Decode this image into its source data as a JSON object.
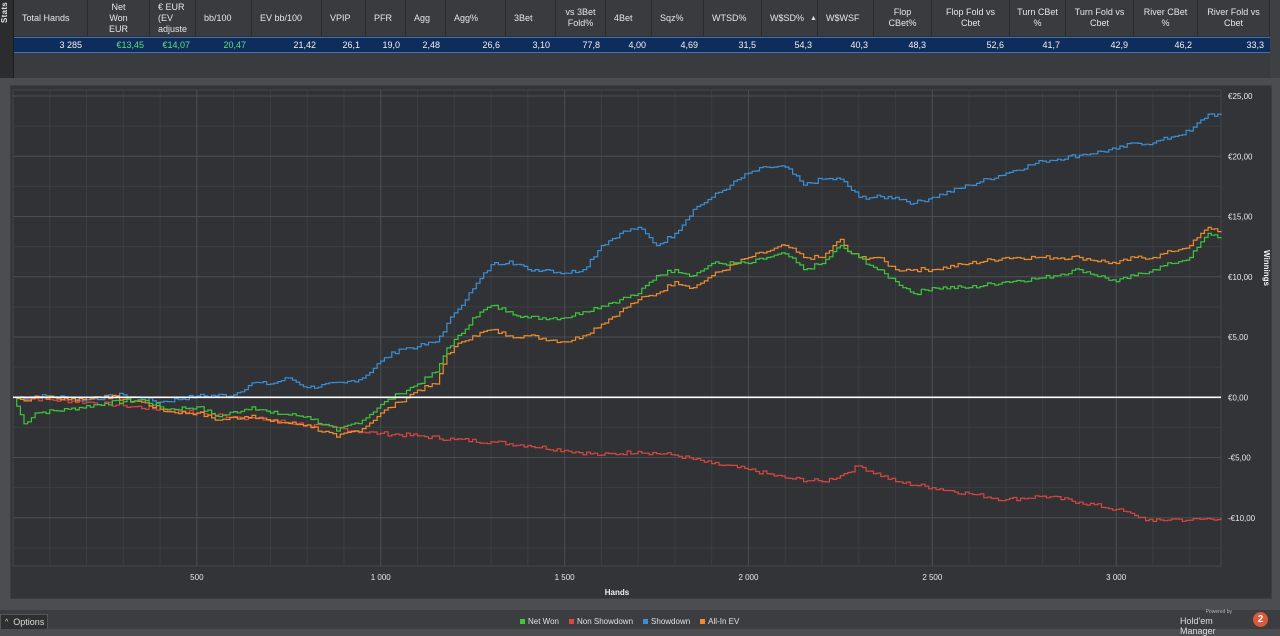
{
  "side_tab": {
    "label": "Stats"
  },
  "stats_table": {
    "columns": [
      {
        "label": "Total Hands",
        "align": "left"
      },
      {
        "label": "Net\nWon\nEUR",
        "align": "center"
      },
      {
        "label": "€ EUR\n(EV\nadjuste",
        "align": "left"
      },
      {
        "label": "bb/100",
        "align": "left"
      },
      {
        "label": "EV bb/100",
        "align": "left"
      },
      {
        "label": "VPIP",
        "align": "left"
      },
      {
        "label": "PFR",
        "align": "left"
      },
      {
        "label": "Agg",
        "align": "left"
      },
      {
        "label": "Agg%",
        "align": "left"
      },
      {
        "label": "3Bet",
        "align": "left"
      },
      {
        "label": "vs 3Bet\nFold%",
        "align": "center"
      },
      {
        "label": "4Bet",
        "align": "left"
      },
      {
        "label": "Sqz%",
        "align": "left"
      },
      {
        "label": "WTSD%",
        "align": "left"
      },
      {
        "label": "W$SD%",
        "align": "left",
        "sorted": true
      },
      {
        "label": "W$WSF",
        "align": "left"
      },
      {
        "label": "Flop\nCBet%",
        "align": "center"
      },
      {
        "label": "Flop Fold vs\nCbet",
        "align": "center"
      },
      {
        "label": "Turn CBet\n%",
        "align": "center"
      },
      {
        "label": "Turn Fold vs\nCbet",
        "align": "center"
      },
      {
        "label": "River CBet\n%",
        "align": "center"
      },
      {
        "label": "River Fold vs\nCbet",
        "align": "center"
      }
    ],
    "row": [
      "3 285",
      "€13,45",
      "€14,07",
      "20,47",
      "21,42",
      "26,1",
      "19,0",
      "2,48",
      "26,6",
      "3,10",
      "77,8",
      "4,00",
      "4,69",
      "31,5",
      "54,3",
      "40,3",
      "48,3",
      "52,6",
      "41,7",
      "42,9",
      "46,2",
      "33,3"
    ],
    "green_values": [
      1,
      2,
      3
    ]
  },
  "chart_data": {
    "type": "line",
    "xlabel": "Hands",
    "ylabel": "Winnings",
    "xlim": [
      0,
      3285
    ],
    "ylim": [
      -14,
      25.5
    ],
    "x_ticks": [
      500,
      1000,
      1500,
      2000,
      2500,
      3000
    ],
    "x_tick_labels": [
      "500",
      "1 000",
      "1 500",
      "2 000",
      "2 500",
      "3 000"
    ],
    "y_ticks": [
      25,
      20,
      15,
      10,
      5,
      0,
      -5,
      -10
    ],
    "y_tick_labels": [
      "€25,00",
      "€20,00",
      "€15,00",
      "€10,00",
      "€5,00",
      "€0,00",
      "-€5,00",
      "-€10,00"
    ],
    "grid": true,
    "zero_line": true,
    "legend_position": "bottom-center",
    "series": [
      {
        "name": "Net Won",
        "color": "#3ec63c",
        "x": [
          0,
          30,
          60,
          150,
          250,
          350,
          420,
          500,
          560,
          650,
          700,
          800,
          880,
          950,
          1000,
          1050,
          1100,
          1150,
          1180,
          1220,
          1250,
          1300,
          1350,
          1400,
          1500,
          1550,
          1650,
          1700,
          1750,
          1800,
          1850,
          1900,
          2000,
          2050,
          2100,
          2150,
          2200,
          2250,
          2270,
          2300,
          2350,
          2400,
          2450,
          2500,
          2600,
          2700,
          2800,
          2900,
          3000,
          3050,
          3100,
          3150,
          3200,
          3250,
          3285
        ],
        "y": [
          0,
          -2.2,
          -1.3,
          -1.0,
          -0.5,
          -0.2,
          -1.0,
          -0.8,
          -1.6,
          -0.8,
          -1.3,
          -1.6,
          -2.8,
          -1.9,
          -0.6,
          0.3,
          1.1,
          2.1,
          4.1,
          5.3,
          6.6,
          7.6,
          7.1,
          6.6,
          6.6,
          7.1,
          8.1,
          8.6,
          10.1,
          10.6,
          10.1,
          11.1,
          11.1,
          11.6,
          11.9,
          10.6,
          11.1,
          12.6,
          12.1,
          11.6,
          10.6,
          9.6,
          8.6,
          9.1,
          9.1,
          9.6,
          9.9,
          10.6,
          9.6,
          10.1,
          10.6,
          11.1,
          11.6,
          13.6,
          13.3
        ]
      },
      {
        "name": "Non Showdown",
        "color": "#d9463f",
        "x": [
          0,
          100,
          200,
          300,
          400,
          500,
          600,
          700,
          800,
          900,
          950,
          1000,
          1100,
          1200,
          1300,
          1400,
          1500,
          1600,
          1700,
          1800,
          1900,
          2000,
          2100,
          2200,
          2250,
          2300,
          2400,
          2500,
          2600,
          2700,
          2800,
          2900,
          3000,
          3050,
          3100,
          3150,
          3200,
          3285
        ],
        "y": [
          0,
          -0.2,
          -0.4,
          -0.7,
          -1.0,
          -1.3,
          -1.6,
          -1.9,
          -2.3,
          -2.6,
          -2.9,
          -3.0,
          -3.2,
          -3.5,
          -3.7,
          -4.0,
          -4.4,
          -4.8,
          -4.5,
          -4.8,
          -5.5,
          -6.0,
          -6.7,
          -7.0,
          -6.5,
          -5.7,
          -7.0,
          -7.5,
          -8.0,
          -8.5,
          -8.2,
          -8.7,
          -9.3,
          -9.8,
          -10.3,
          -10.1,
          -10.2,
          -10.0
        ]
      },
      {
        "name": "Showdown",
        "color": "#3b8fd6",
        "x": [
          0,
          100,
          200,
          300,
          400,
          500,
          600,
          650,
          700,
          750,
          800,
          900,
          950,
          1000,
          1050,
          1100,
          1150,
          1200,
          1250,
          1300,
          1350,
          1400,
          1450,
          1500,
          1550,
          1600,
          1650,
          1700,
          1750,
          1800,
          1850,
          1900,
          1950,
          2000,
          2050,
          2100,
          2150,
          2200,
          2250,
          2300,
          2400,
          2450,
          2500,
          2600,
          2700,
          2800,
          2900,
          3000,
          3050,
          3100,
          3150,
          3200,
          3250,
          3285
        ],
        "y": [
          0,
          0.1,
          -0.2,
          0.2,
          -0.4,
          0.1,
          0.2,
          1.2,
          1.1,
          1.6,
          0.8,
          1.2,
          1.6,
          3.0,
          4.0,
          4.2,
          4.6,
          7.0,
          9.0,
          11.0,
          11.3,
          10.6,
          10.6,
          10.3,
          10.6,
          12.6,
          13.6,
          14.1,
          12.6,
          13.6,
          15.6,
          16.6,
          17.6,
          18.6,
          19.1,
          19.1,
          17.6,
          18.1,
          18.1,
          16.6,
          16.6,
          16.1,
          16.6,
          17.6,
          18.6,
          19.6,
          20.1,
          20.6,
          21.1,
          21.1,
          21.6,
          22.1,
          23.5,
          23.4
        ]
      },
      {
        "name": "All-In EV",
        "color": "#f08c2c",
        "x": [
          0,
          30,
          60,
          150,
          250,
          350,
          420,
          500,
          560,
          650,
          700,
          800,
          880,
          950,
          1000,
          1050,
          1100,
          1150,
          1180,
          1220,
          1250,
          1300,
          1350,
          1400,
          1500,
          1550,
          1650,
          1700,
          1750,
          1800,
          1850,
          1900,
          2000,
          2050,
          2100,
          2150,
          2200,
          2250,
          2270,
          2300,
          2350,
          2400,
          2450,
          2500,
          2600,
          2700,
          2800,
          2900,
          3000,
          3050,
          3100,
          3150,
          3200,
          3250,
          3285
        ],
        "y": [
          0,
          -0.3,
          0.1,
          -0.2,
          0.1,
          -0.4,
          -1.2,
          -1.3,
          -1.9,
          -1.5,
          -2.0,
          -2.3,
          -3.3,
          -2.6,
          -1.3,
          -0.4,
          0.6,
          1.1,
          3.6,
          4.6,
          5.1,
          5.6,
          5.1,
          5.1,
          4.6,
          5.1,
          7.1,
          8.1,
          8.6,
          9.6,
          9.1,
          10.1,
          11.6,
          12.1,
          12.6,
          11.6,
          11.6,
          13.1,
          12.1,
          11.6,
          11.6,
          10.6,
          10.6,
          10.6,
          11.1,
          11.6,
          11.6,
          11.6,
          11.1,
          11.6,
          11.6,
          12.1,
          12.6,
          14.1,
          13.8
        ]
      }
    ]
  },
  "footer": {
    "options_label": "Options",
    "powered_by": "Powered by",
    "brand_name": "Hold'em Manager",
    "brand_badge": "2"
  }
}
